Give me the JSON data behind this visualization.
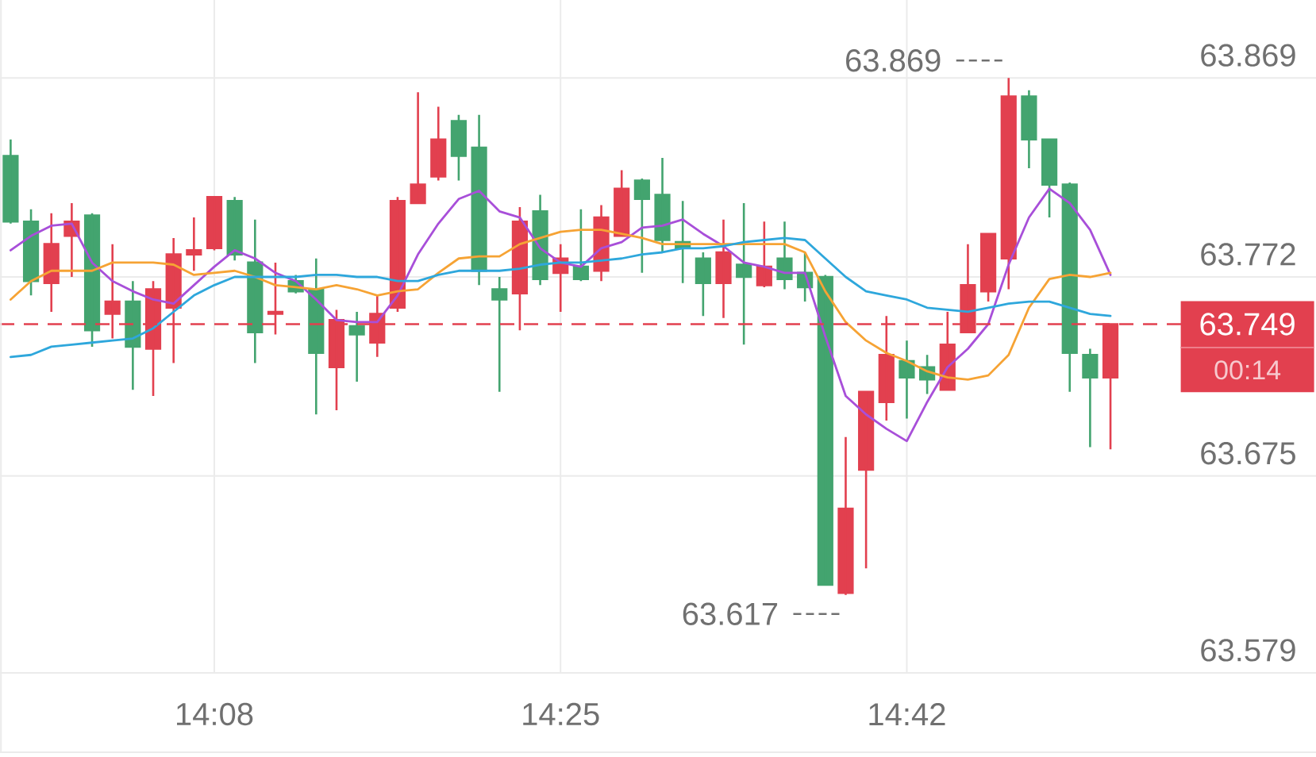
{
  "chart_data": {
    "type": "candlestick",
    "categories": [
      null,
      null,
      null,
      null,
      null,
      null,
      null,
      null,
      null,
      null,
      "14:08",
      null,
      null,
      null,
      null,
      null,
      null,
      null,
      null,
      null,
      null,
      null,
      null,
      null,
      null,
      null,
      null,
      "14:25",
      null,
      null,
      null,
      null,
      null,
      null,
      null,
      null,
      null,
      null,
      null,
      null,
      null,
      null,
      null,
      null,
      "14:42",
      null,
      null,
      null,
      null,
      null,
      null,
      null,
      null,
      null,
      null
    ],
    "ohlc": [
      [
        63.831,
        63.839,
        63.798,
        63.799
      ],
      [
        63.799,
        63.805,
        63.763,
        63.77
      ],
      [
        63.769,
        63.803,
        63.755,
        63.788
      ],
      [
        63.792,
        63.808,
        63.772,
        63.799
      ],
      [
        63.802,
        63.803,
        63.738,
        63.746
      ],
      [
        63.754,
        63.788,
        63.742,
        63.76
      ],
      [
        63.76,
        63.77,
        63.717,
        63.738
      ],
      [
        63.737,
        63.77,
        63.714,
        63.766
      ],
      [
        63.757,
        63.791,
        63.73,
        63.783
      ],
      [
        63.783,
        63.801,
        63.775,
        63.785
      ],
      [
        63.786,
        63.811,
        63.785,
        63.811
      ],
      [
        63.809,
        63.811,
        63.78,
        63.783
      ],
      [
        63.779,
        63.8,
        63.73,
        63.745
      ],
      [
        63.754,
        63.779,
        63.744,
        63.755
      ],
      [
        63.77,
        63.773,
        63.764,
        63.765
      ],
      [
        63.766,
        63.781,
        63.705,
        63.735
      ],
      [
        63.728,
        63.756,
        63.707,
        63.751
      ],
      [
        63.748,
        63.755,
        63.721,
        63.744
      ],
      [
        63.74,
        63.763,
        63.733,
        63.754
      ],
      [
        63.757,
        63.811,
        63.755,
        63.809
      ],
      [
        63.808,
        63.862,
        63.808,
        63.817
      ],
      [
        63.821,
        63.855,
        63.819,
        63.839
      ],
      [
        63.848,
        63.851,
        63.819,
        63.831
      ],
      [
        63.835,
        63.851,
        63.768,
        63.775
      ],
      [
        63.766,
        63.772,
        63.716,
        63.761
      ],
      [
        63.764,
        63.806,
        63.746,
        63.799
      ],
      [
        63.804,
        63.812,
        63.768,
        63.771
      ],
      [
        63.774,
        63.788,
        63.755,
        63.781
      ],
      [
        63.777,
        63.805,
        63.77,
        63.771
      ],
      [
        63.775,
        63.807,
        63.77,
        63.801
      ],
      [
        63.792,
        63.824,
        63.792,
        63.815
      ],
      [
        63.819,
        63.82,
        63.774,
        63.81
      ],
      [
        63.812,
        63.83,
        63.784,
        63.79
      ],
      [
        63.789,
        63.809,
        63.769,
        63.786
      ],
      [
        63.781,
        63.784,
        63.753,
        63.769
      ],
      [
        63.769,
        63.8,
        63.752,
        63.784
      ],
      [
        63.778,
        63.808,
        63.739,
        63.772
      ],
      [
        63.768,
        63.799,
        63.767,
        63.777
      ],
      [
        63.781,
        63.799,
        63.766,
        63.771
      ],
      [
        63.774,
        63.784,
        63.76,
        63.767
      ],
      [
        63.772,
        63.773,
        63.622,
        63.622
      ],
      [
        63.618,
        63.694,
        63.617,
        63.659
      ],
      [
        63.678,
        63.716,
        63.63,
        63.716
      ],
      [
        63.711,
        63.753,
        63.702,
        63.734
      ],
      [
        63.731,
        63.741,
        63.703,
        63.723
      ],
      [
        63.728,
        63.734,
        63.715,
        63.722
      ],
      [
        63.717,
        63.755,
        63.717,
        63.739
      ],
      [
        63.745,
        63.788,
        63.745,
        63.768
      ],
      [
        63.765,
        63.793,
        63.76,
        63.793
      ],
      [
        63.781,
        63.869,
        63.766,
        63.86
      ],
      [
        63.86,
        63.863,
        63.825,
        63.839
      ],
      [
        63.839,
        63.839,
        63.801,
        63.817
      ],
      [
        63.817,
        63.818,
        63.716,
        63.735
      ],
      [
        63.734,
        63.737,
        63.689,
        63.723
      ],
      [
        63.723,
        63.749,
        63.688,
        63.749
      ]
    ],
    "colors": [
      "#43a46f",
      "#43a46f",
      "#e2404f",
      "#e2404f",
      "#43a46f",
      "#e2404f",
      "#43a46f",
      "#e2404f",
      "#e2404f",
      "#e2404f",
      "#e2404f",
      "#43a46f",
      "#43a46f",
      "#e2404f",
      "#43a46f",
      "#43a46f",
      "#e2404f",
      "#43a46f",
      "#e2404f",
      "#e2404f",
      "#e2404f",
      "#e2404f",
      "#43a46f",
      "#43a46f",
      "#43a46f",
      "#e2404f",
      "#43a46f",
      "#e2404f",
      "#43a46f",
      "#e2404f",
      "#e2404f",
      "#43a46f",
      "#43a46f",
      "#43a46f",
      "#43a46f",
      "#e2404f",
      "#43a46f",
      "#e2404f",
      "#43a46f",
      "#43a46f",
      "#43a46f",
      "#e2404f",
      "#e2404f",
      "#e2404f",
      "#43a46f",
      "#43a46f",
      "#e2404f",
      "#e2404f",
      "#e2404f",
      "#e2404f",
      "#43a46f",
      "#43a46f",
      "#43a46f",
      "#43a46f",
      "#e2404f"
    ],
    "series": [
      {
        "type": "line",
        "color": "#a84fd9",
        "values": [
          63.785,
          63.792,
          63.797,
          63.798,
          63.779,
          63.77,
          63.765,
          63.761,
          63.759,
          63.768,
          63.777,
          63.785,
          63.781,
          63.774,
          63.77,
          63.761,
          63.751,
          63.75,
          63.75,
          63.763,
          63.783,
          63.798,
          63.81,
          63.814,
          63.804,
          63.801,
          63.786,
          63.779,
          63.777,
          63.786,
          63.789,
          63.796,
          63.797,
          63.8,
          63.793,
          63.787,
          63.779,
          63.777,
          63.774,
          63.774,
          63.743,
          63.714,
          63.705,
          63.698,
          63.692,
          63.711,
          63.728,
          63.737,
          63.749,
          63.778,
          63.801,
          63.815,
          63.808,
          63.795,
          63.773
        ]
      },
      {
        "type": "line",
        "color": "#f6a334",
        "values": [
          63.761,
          63.77,
          63.775,
          63.775,
          63.775,
          63.779,
          63.779,
          63.779,
          63.778,
          63.773,
          63.774,
          63.775,
          63.772,
          63.768,
          63.767,
          63.766,
          63.768,
          63.766,
          63.763,
          63.765,
          63.766,
          63.774,
          63.781,
          63.782,
          63.782,
          63.788,
          63.791,
          63.794,
          63.795,
          63.795,
          63.793,
          63.791,
          63.788,
          63.788,
          63.788,
          63.788,
          63.788,
          63.788,
          63.788,
          63.784,
          63.765,
          63.75,
          63.741,
          63.735,
          63.731,
          63.726,
          63.723,
          63.722,
          63.724,
          63.734,
          63.757,
          63.771,
          63.773,
          63.772,
          63.774
        ]
      },
      {
        "type": "line",
        "color": "#2ea7dc",
        "values": [
          63.733,
          63.734,
          63.738,
          63.739,
          63.74,
          63.741,
          63.742,
          63.747,
          63.755,
          63.763,
          63.768,
          63.772,
          63.772,
          63.772,
          63.772,
          63.773,
          63.773,
          63.772,
          63.772,
          63.77,
          63.77,
          63.773,
          63.775,
          63.775,
          63.775,
          63.776,
          63.778,
          63.779,
          63.779,
          63.78,
          63.781,
          63.783,
          63.784,
          63.786,
          63.786,
          63.787,
          63.789,
          63.79,
          63.791,
          63.79,
          63.781,
          63.772,
          63.765,
          63.763,
          63.761,
          63.757,
          63.756,
          63.755,
          63.757,
          63.759,
          63.76,
          63.76,
          63.757,
          63.754,
          63.753
        ]
      }
    ],
    "ylim": [
      63.579,
      63.907
    ],
    "yticks": [
      63.579,
      63.675,
      63.772,
      63.869
    ],
    "grid": true,
    "ref_lines": [
      {
        "axis": "y",
        "value": 63.749,
        "label": "63.749",
        "color": "#e2404f",
        "line_style": "dashed"
      }
    ],
    "annotations": [
      "63.869",
      "63.617",
      "00:14"
    ]
  }
}
